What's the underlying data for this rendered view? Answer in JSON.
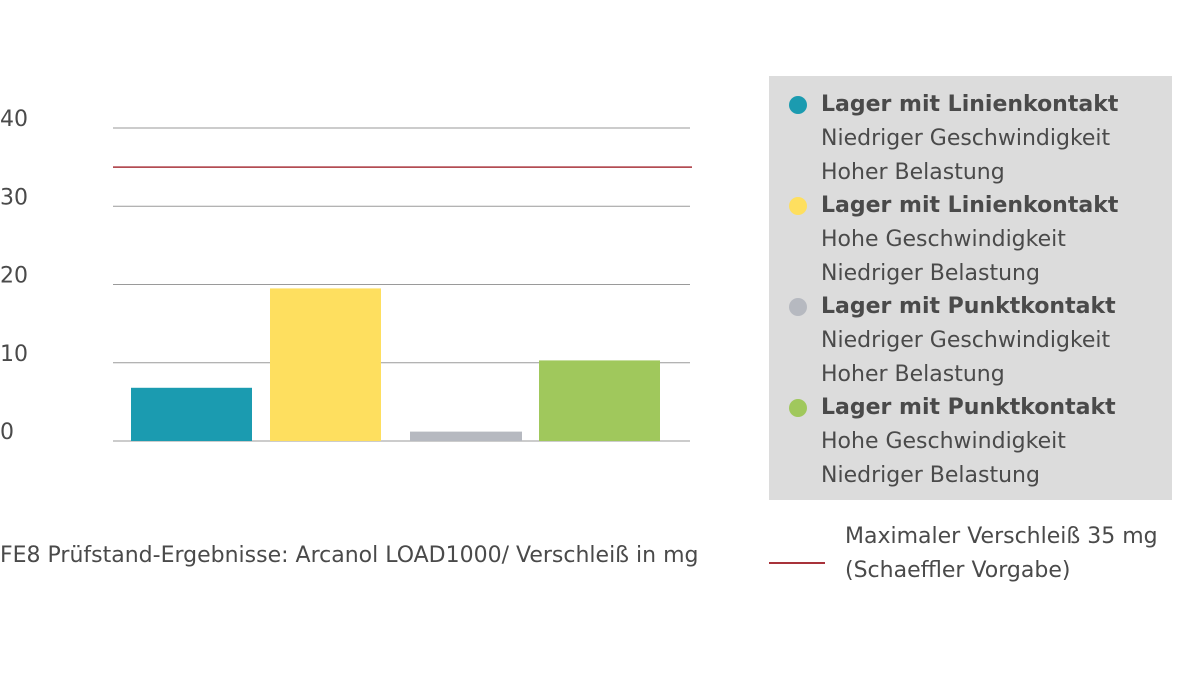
{
  "chart_data": {
    "type": "bar",
    "ylim": [
      0,
      40
    ],
    "yticks": [
      0,
      10,
      20,
      30,
      40
    ],
    "grid": true,
    "categories": [
      "Lager mit Linienkontakt – Niedriger Geschwindigkeit, Hoher Belastung",
      "Lager mit Linienkontakt – Hohe Geschwindigkeit, Niedriger Belastung",
      "Lager mit Punktkontakt – Niedriger Geschwindigkeit, Hoher Belastung",
      "Lager mit Punktkontakt – Hohe Geschwindigkeit, Niedriger Belastung"
    ],
    "values": [
      6.8,
      19.5,
      1.2,
      10.3
    ],
    "colors": [
      "#1b9bb0",
      "#fedf5f",
      "#b6b9c0",
      "#a0c85c"
    ],
    "reference_line": {
      "value": 35,
      "color": "#a8323a"
    },
    "legend_position": "right",
    "legend": [
      {
        "title": "Lager mit Linienkontakt",
        "line1": "Niedriger Geschwindigkeit",
        "line2": "Hoher Belastung"
      },
      {
        "title": "Lager mit Linienkontakt",
        "line1": "Hohe Geschwindigkeit",
        "line2": "Niedriger Belastung"
      },
      {
        "title": "Lager mit Punktkontakt",
        "line1": "Niedriger Geschwindigkeit",
        "line2": "Hoher Belastung"
      },
      {
        "title": "Lager mit Punktkontakt",
        "line1": "Hohe Geschwindigkeit",
        "line2": "Niedriger Belastung"
      }
    ],
    "caption": "FE8 Prüfstand-Ergebnisse: Arcanol LOAD1000/ Verschleiß in mg",
    "reference_legend": {
      "line1": "Maximaler Verschleiß 35 mg",
      "line2": "(Schaeffler Vorgabe)"
    }
  }
}
